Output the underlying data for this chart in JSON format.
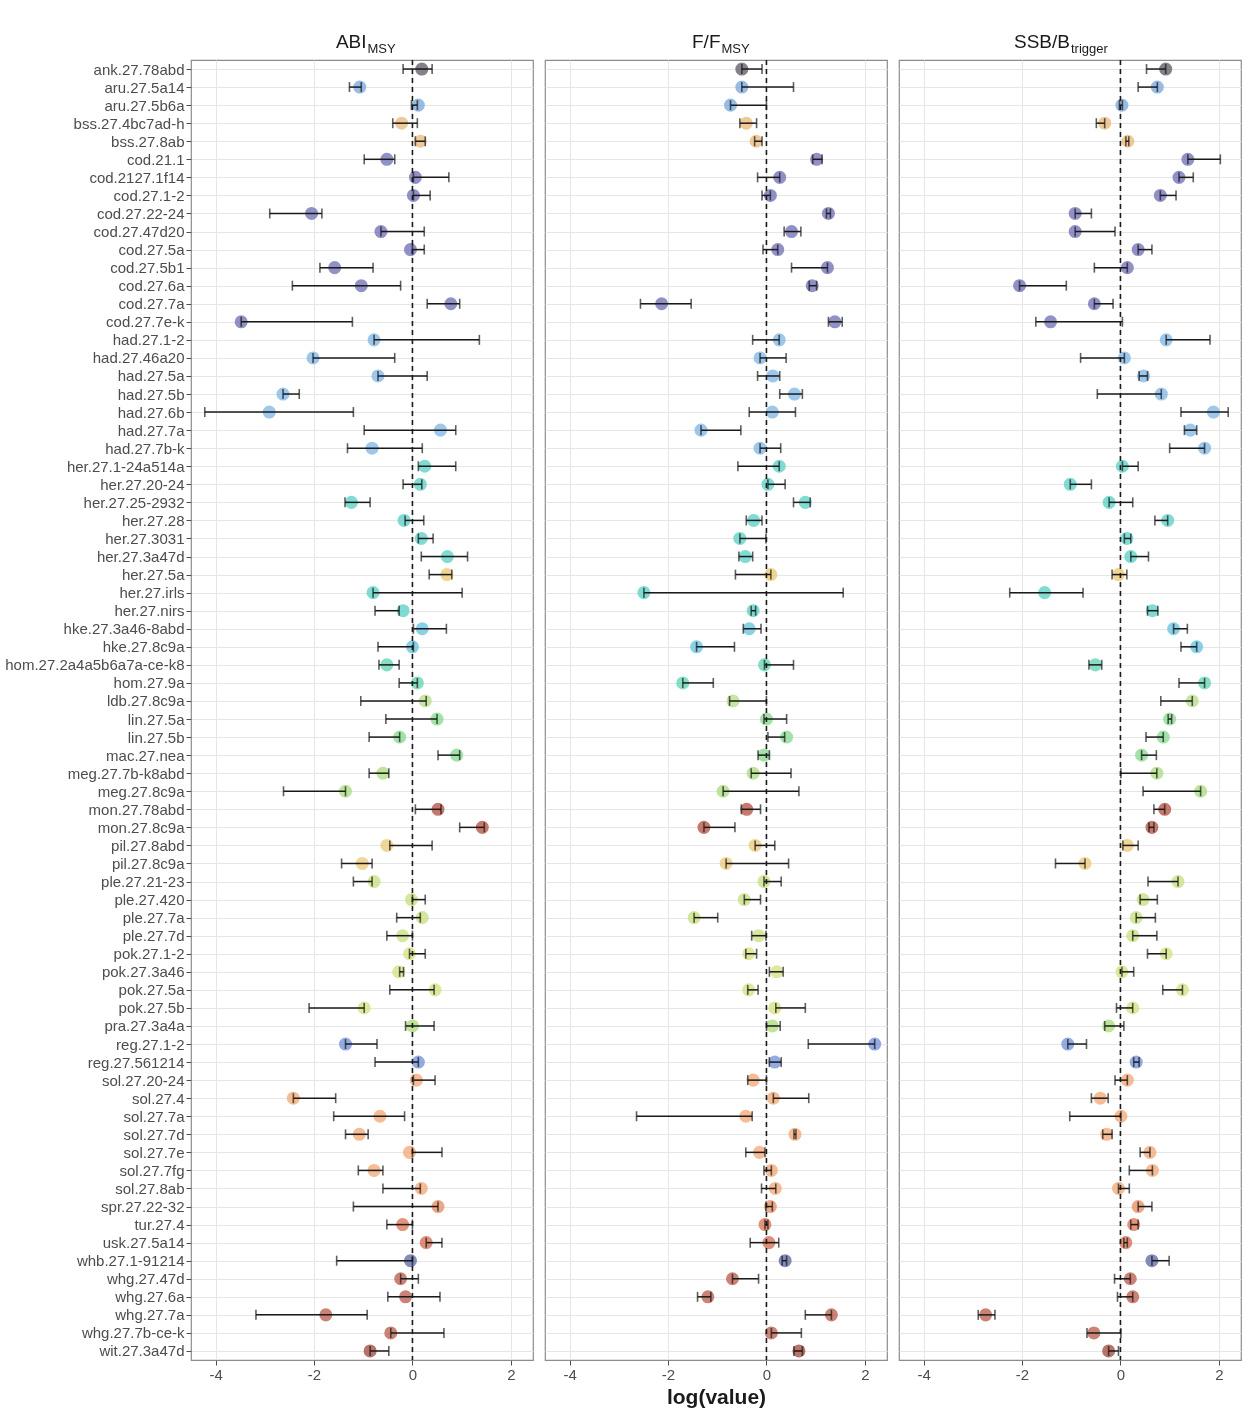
{
  "chart_data": [
    {
      "type": "scatter",
      "title": "ABI$_{MSY}$",
      "orientation": "horizontal",
      "marker": "circle",
      "grid": true,
      "categories": [
        "ank.27.78abd",
        "aru.27.5a14",
        "aru.27.5b6a",
        "bss.27.4bc7ad-h",
        "bss.27.8ab",
        "cod.21.1",
        "cod.2127.1f14",
        "cod.27.1-2",
        "cod.27.22-24",
        "cod.27.47d20",
        "cod.27.5a",
        "cod.27.5b1",
        "cod.27.6a",
        "cod.27.7a",
        "cod.27.7e-k",
        "had.27.1-2",
        "had.27.46a20",
        "had.27.5a",
        "had.27.5b",
        "had.27.6b",
        "had.27.7a",
        "had.27.7b-k",
        "her.27.1-24a514a",
        "her.27.20-24",
        "her.27.25-2932",
        "her.27.28",
        "her.27.3031",
        "her.27.3a47d",
        "her.27.5a",
        "her.27.irls",
        "her.27.nirs",
        "hke.27.3a46-8abd",
        "hke.27.8c9a",
        "hom.27.2a4a5b6a7a-ce-k8",
        "hom.27.9a",
        "ldb.27.8c9a",
        "lin.27.5a",
        "lin.27.5b",
        "mac.27.nea",
        "meg.27.7b-k8abd",
        "meg.27.8c9a",
        "mon.27.78abd",
        "mon.27.8c9a",
        "pil.27.8abd",
        "pil.27.8c9a",
        "ple.27.21-23",
        "ple.27.420",
        "ple.27.7a",
        "ple.27.7d",
        "pok.27.1-2",
        "pok.27.3a46",
        "pok.27.5a",
        "pok.27.5b",
        "pra.27.3a4a",
        "reg.27.1-2",
        "reg.27.561214",
        "sol.27.20-24",
        "sol.27.4",
        "sol.27.7a",
        "sol.27.7d",
        "sol.27.7e",
        "sol.27.7fg",
        "sol.27.8ab",
        "spr.27.22-32",
        "tur.27.4",
        "usk.27.5a14",
        "whb.27.1-91214",
        "whg.27.47d",
        "whg.27.6a",
        "whg.27.7a",
        "whg.27.7b-ce-k",
        "wit.27.3a47d"
      ],
      "colors": [
        "#5e5560",
        "#76a7dc",
        "#76a7dc",
        "#e9b774",
        "#e9b774",
        "#6e6cb4",
        "#6e6cb4",
        "#6e6cb4",
        "#6e6cb4",
        "#6e6cb4",
        "#6e6cb4",
        "#6e6cb4",
        "#6e6cb4",
        "#6e6cb4",
        "#6e6cb4",
        "#7db4e6",
        "#7db4e6",
        "#7db4e6",
        "#7db4e6",
        "#7db4e6",
        "#7db4e6",
        "#7db4e6",
        "#55cfc4",
        "#55cfc4",
        "#55cfc4",
        "#55cfc4",
        "#55cfc4",
        "#55cfc4",
        "#e8c76c",
        "#55cfc4",
        "#55cfc4",
        "#62c2df",
        "#62c2df",
        "#5ed3b0",
        "#5ed3b0",
        "#b5dc84",
        "#84da8e",
        "#84da8e",
        "#84da8e",
        "#a8db7e",
        "#a8db7e",
        "#b64c3e",
        "#b64c3e",
        "#ecc878",
        "#ecc878",
        "#c6df7c",
        "#c6df7c",
        "#c6df7c",
        "#c6df7c",
        "#d4e07c",
        "#d4e07c",
        "#d4e07c",
        "#d4e07c",
        "#a8dc74",
        "#6f8fd8",
        "#6f8fd8",
        "#f2a572",
        "#f2a572",
        "#f2a572",
        "#f2a572",
        "#f2a572",
        "#f2a572",
        "#f2a572",
        "#e68c60",
        "#d9704f",
        "#d2694b",
        "#5b66a6",
        "#b85a48",
        "#b85a48",
        "#b85a48",
        "#b85a48",
        "#a0463a"
      ],
      "values": [
        0.19,
        -1.07,
        0.12,
        -0.22,
        0.16,
        -0.52,
        0.06,
        0.02,
        -2.05,
        -0.64,
        -0.04,
        -1.58,
        -1.04,
        0.78,
        -3.48,
        -0.78,
        -2.02,
        -0.7,
        -2.63,
        -2.91,
        0.57,
        -0.82,
        0.25,
        0.16,
        -1.24,
        -0.17,
        0.18,
        0.71,
        0.7,
        -0.8,
        -0.19,
        0.2,
        0,
        -0.52,
        0.1,
        0.26,
        0.5,
        -0.26,
        0.9,
        -0.6,
        -1.36,
        0.52,
        1.42,
        -0.52,
        -1.02,
        -0.78,
        -0.02,
        0.2,
        -0.2,
        -0.06,
        -0.28,
        0.46,
        -0.98,
        0,
        -1.36,
        0.12,
        0.08,
        -2.42,
        -0.66,
        -1.08,
        -0.06,
        -0.78,
        0.18,
        0.52,
        -0.2,
        0.28,
        -0.04,
        -0.24,
        -0.14,
        -1.76,
        -0.44,
        -0.86
      ],
      "errors": [
        [
          -0.19,
          0.4
        ],
        [
          -1.28,
          -1.04
        ],
        [
          -0.02,
          0.1
        ],
        [
          -0.4,
          0.1
        ],
        [
          0.06,
          0.26
        ],
        [
          -0.98,
          -0.36
        ],
        [
          0.02,
          0.74
        ],
        [
          0.02,
          0.36
        ],
        [
          -2.9,
          -1.84
        ],
        [
          -0.64,
          0.24
        ],
        [
          0,
          0.24
        ],
        [
          -1.88,
          -0.8
        ],
        [
          -2.44,
          -0.24
        ],
        [
          0.3,
          0.96
        ],
        [
          -3.48,
          -1.22
        ],
        [
          -0.78,
          1.36
        ],
        [
          -2.02,
          -0.36
        ],
        [
          -0.7,
          0.3
        ],
        [
          -2.63,
          -2.3
        ],
        [
          -4.22,
          -1.2
        ],
        [
          -0.98,
          0.88
        ],
        [
          -1.32,
          0.2
        ],
        [
          0.12,
          0.88
        ],
        [
          -0.19,
          0.19
        ],
        [
          -1.37,
          -0.86
        ],
        [
          -0.15,
          0.23
        ],
        [
          0.12,
          0.42
        ],
        [
          0.18,
          1.12
        ],
        [
          0.34,
          0.8
        ],
        [
          -0.8,
          1.01
        ],
        [
          -0.76,
          -0.27
        ],
        [
          0.02,
          0.69
        ],
        [
          -0.7,
          0.02
        ],
        [
          -0.68,
          -0.27
        ],
        [
          -0.27,
          0.1
        ],
        [
          -1.05,
          0.28
        ],
        [
          -0.54,
          0.5
        ],
        [
          -0.88,
          -0.26
        ],
        [
          0.52,
          0.96
        ],
        [
          -0.88,
          -0.48
        ],
        [
          -2.62,
          -1.36
        ],
        [
          0.06,
          0.58
        ],
        [
          0.96,
          1.46
        ],
        [
          -0.46,
          0.4
        ],
        [
          -1.44,
          -0.82
        ],
        [
          -1.2,
          -0.82
        ],
        [
          0,
          0.26
        ],
        [
          -0.32,
          0.16
        ],
        [
          -0.52,
          0
        ],
        [
          -0.06,
          0.26
        ],
        [
          -0.26,
          -0.18
        ],
        [
          -0.46,
          0.44
        ],
        [
          -2.1,
          -0.98
        ],
        [
          -0.14,
          0.44
        ],
        [
          -1.36,
          -0.72
        ],
        [
          -0.76,
          0.12
        ],
        [
          0.02,
          0.46
        ],
        [
          -2.42,
          -1.56
        ],
        [
          -1.6,
          -0.16
        ],
        [
          -1.36,
          -0.9
        ],
        [
          0,
          0.6
        ],
        [
          -1.1,
          -0.6
        ],
        [
          -0.6,
          0.16
        ],
        [
          -1.2,
          0.52
        ],
        [
          -0.52,
          0
        ],
        [
          0.28,
          0.6
        ],
        [
          -1.54,
          0
        ],
        [
          -0.24,
          0.12
        ],
        [
          -0.5,
          0.56
        ],
        [
          -3.18,
          -0.92
        ],
        [
          -0.44,
          0.64
        ],
        [
          -0.86,
          -0.48
        ]
      ],
      "xlim": [
        -4.5,
        2.45
      ],
      "xticks": [
        -4,
        -2,
        0,
        2
      ],
      "ref_lines": [
        {
          "axis": "x",
          "value": 0,
          "line_style": "dashed"
        }
      ]
    },
    {
      "type": "scatter",
      "title": "F/F$_{MSY}$",
      "xlabel": "log(value)",
      "orientation": "horizontal",
      "marker": "circle",
      "grid": true,
      "tick_labels": "x",
      "colors": [
        "#5e5560",
        "#76a7dc",
        "#76a7dc",
        "#e9b774",
        "#e9b774",
        "#6e6cb4",
        "#6e6cb4",
        "#6e6cb4",
        "#6e6cb4",
        "#6e6cb4",
        "#6e6cb4",
        "#6e6cb4",
        "#6e6cb4",
        "#6e6cb4",
        "#6e6cb4",
        "#7db4e6",
        "#7db4e6",
        "#7db4e6",
        "#7db4e6",
        "#7db4e6",
        "#7db4e6",
        "#7db4e6",
        "#55cfc4",
        "#55cfc4",
        "#55cfc4",
        "#55cfc4",
        "#55cfc4",
        "#55cfc4",
        "#e8c76c",
        "#55cfc4",
        "#55cfc4",
        "#62c2df",
        "#62c2df",
        "#5ed3b0",
        "#5ed3b0",
        "#b5dc84",
        "#84da8e",
        "#84da8e",
        "#84da8e",
        "#a8db7e",
        "#a8db7e",
        "#b64c3e",
        "#b64c3e",
        "#ecc878",
        "#ecc878",
        "#c6df7c",
        "#c6df7c",
        "#c6df7c",
        "#c6df7c",
        "#d4e07c",
        "#d4e07c",
        "#d4e07c",
        "#d4e07c",
        "#a8dc74",
        "#6f8fd8",
        "#6f8fd8",
        "#f2a572",
        "#f2a572",
        "#f2a572",
        "#f2a572",
        "#f2a572",
        "#f2a572",
        "#f2a572",
        "#e68c60",
        "#d9704f",
        "#d2694b",
        "#5b66a6",
        "#b85a48",
        "#b85a48",
        "#b85a48",
        "#b85a48",
        "#a0463a"
      ],
      "values": [
        -0.5,
        -0.5,
        -0.73,
        -0.41,
        -0.21,
        1.02,
        0.27,
        0.08,
        1.26,
        0.51,
        0.23,
        1.24,
        0.93,
        -2.13,
        1.39,
        0.26,
        -0.13,
        0.13,
        0.57,
        0.12,
        -1.33,
        -0.13,
        0.26,
        0.03,
        0.79,
        -0.26,
        -0.54,
        -0.43,
        0.09,
        -2.49,
        -0.27,
        -0.35,
        -1.42,
        -0.04,
        -1.7,
        -0.68,
        0,
        0.41,
        -0.05,
        -0.27,
        -0.88,
        -0.4,
        -1.27,
        -0.23,
        -0.82,
        -0.05,
        -0.45,
        -1.47,
        -0.16,
        -0.36,
        0.21,
        -0.36,
        0.17,
        0.12,
        2.2,
        0.17,
        -0.27,
        0.14,
        -0.42,
        0.58,
        -0.14,
        0.1,
        0.18,
        0.08,
        -0.03,
        0.05,
        0.38,
        -0.69,
        -1.19,
        1.32,
        0.1,
        0.66
      ],
      "errors": [
        [
          -0.5,
          -0.09
        ],
        [
          -0.5,
          0.55
        ],
        [
          -0.73,
          0
        ],
        [
          -0.54,
          -0.2
        ],
        [
          -0.24,
          -0.09
        ],
        [
          0.94,
          1.13
        ],
        [
          -0.18,
          0.27
        ],
        [
          -0.09,
          0.08
        ],
        [
          1.22,
          1.3
        ],
        [
          0.36,
          0.7
        ],
        [
          -0.07,
          0.23
        ],
        [
          0.51,
          1.24
        ],
        [
          0.87,
          1.02
        ],
        [
          -2.56,
          -1.53
        ],
        [
          1.26,
          1.54
        ],
        [
          -0.28,
          0.26
        ],
        [
          -0.13,
          0.4
        ],
        [
          -0.18,
          0.27
        ],
        [
          0.27,
          0.73
        ],
        [
          -0.35,
          0.59
        ],
        [
          -1.33,
          -0.52
        ],
        [
          -0.13,
          0.29
        ],
        [
          -0.58,
          0.26
        ],
        [
          0.03,
          0.38
        ],
        [
          0.55,
          0.89
        ],
        [
          -0.41,
          -0.09
        ],
        [
          -0.54,
          -0.01
        ],
        [
          -0.56,
          -0.28
        ],
        [
          -0.63,
          0.09
        ],
        [
          -2.49,
          1.56
        ],
        [
          -0.31,
          -0.22
        ],
        [
          -0.47,
          -0.11
        ],
        [
          -1.42,
          -0.65
        ],
        [
          -0.04,
          0.55
        ],
        [
          -1.7,
          -1.08
        ],
        [
          -0.75,
          0
        ],
        [
          -0.05,
          0.41
        ],
        [
          0.03,
          0.37
        ],
        [
          -0.17,
          0.06
        ],
        [
          -0.31,
          0.5
        ],
        [
          -0.88,
          0.66
        ],
        [
          -0.51,
          -0.12
        ],
        [
          -1.27,
          -0.64
        ],
        [
          -0.23,
          0.17
        ],
        [
          -0.82,
          0.45
        ],
        [
          -0.05,
          0.3
        ],
        [
          -0.45,
          -0.12
        ],
        [
          -1.47,
          -0.99
        ],
        [
          -0.3,
          -0.01
        ],
        [
          -0.42,
          -0.2
        ],
        [
          0.06,
          0.34
        ],
        [
          -0.38,
          -0.17
        ],
        [
          0.19,
          0.79
        ],
        [
          0,
          0.28
        ],
        [
          0.85,
          2.2
        ],
        [
          0.06,
          0.3
        ],
        [
          -0.38,
          0
        ],
        [
          0.14,
          0.86
        ],
        [
          -2.64,
          -0.29
        ],
        [
          0.56,
          0.6
        ],
        [
          -0.42,
          -0.03
        ],
        [
          -0.05,
          0.1
        ],
        [
          -0.1,
          0.19
        ],
        [
          -0.01,
          0.12
        ],
        [
          -0.03,
          0.03
        ],
        [
          -0.33,
          0.25
        ],
        [
          0.32,
          0.41
        ],
        [
          -0.69,
          -0.16
        ],
        [
          -1.4,
          -1.13
        ],
        [
          0.79,
          1.32
        ],
        [
          0.1,
          0.71
        ],
        [
          0.56,
          0.73
        ]
      ],
      "xlim": [
        -4.5,
        2.45
      ],
      "xticks": [
        -4,
        -2,
        0,
        2
      ],
      "ref_lines": [
        {
          "axis": "x",
          "value": 0,
          "line_style": "dashed"
        }
      ]
    },
    {
      "type": "scatter",
      "title": "SSB/B$_{trigger}$",
      "orientation": "horizontal",
      "marker": "circle",
      "grid": true,
      "tick_labels": "x",
      "colors": [
        "#5e5560",
        "#76a7dc",
        "#76a7dc",
        "#e9b774",
        "#e9b774",
        "#6e6cb4",
        "#6e6cb4",
        "#6e6cb4",
        "#6e6cb4",
        "#6e6cb4",
        "#6e6cb4",
        "#6e6cb4",
        "#6e6cb4",
        "#6e6cb4",
        "#6e6cb4",
        "#7db4e6",
        "#7db4e6",
        "#7db4e6",
        "#7db4e6",
        "#7db4e6",
        "#7db4e6",
        "#7db4e6",
        "#55cfc4",
        "#55cfc4",
        "#55cfc4",
        "#55cfc4",
        "#55cfc4",
        "#55cfc4",
        "#e8c76c",
        "#55cfc4",
        "#55cfc4",
        "#62c2df",
        "#62c2df",
        "#5ed3b0",
        "#5ed3b0",
        "#b5dc84",
        "#84da8e",
        "#84da8e",
        "#84da8e",
        "#a8db7e",
        "#a8db7e",
        "#b64c3e",
        "#b64c3e",
        "#ecc878",
        "#ecc878",
        "#c6df7c",
        "#c6df7c",
        "#c6df7c",
        "#c6df7c",
        "#d4e07c",
        "#d4e07c",
        "#d4e07c",
        "#d4e07c",
        "#a8dc74",
        "#6f8fd8",
        "#6f8fd8",
        "#f2a572",
        "#f2a572",
        "#f2a572",
        "#f2a572",
        "#f2a572",
        "#f2a572",
        "#f2a572",
        "#e68c60",
        "#d9704f",
        "#d2694b",
        "#5b66a6",
        "#b85a48",
        "#b85a48",
        "#b85a48",
        "#b85a48",
        "#a0463a"
      ],
      "values": [
        0.92,
        0.75,
        0.03,
        -0.32,
        0.15,
        1.37,
        1.19,
        0.81,
        -0.92,
        -0.92,
        0.36,
        0.14,
        -2.05,
        -0.53,
        -1.42,
        0.93,
        0.08,
        0.47,
        0.83,
        1.89,
        1.42,
        1.71,
        0.04,
        -1.02,
        -0.23,
        0.96,
        0.13,
        0.21,
        -0.04,
        -1.54,
        0.65,
        1.08,
        1.55,
        -0.51,
        1.71,
        1.46,
        1,
        0.87,
        0.43,
        0.74,
        1.63,
        0.9,
        0.64,
        0.14,
        -0.72,
        1.17,
        0.46,
        0.32,
        0.25,
        0.93,
        0.03,
        1.26,
        0.25,
        -0.24,
        -1.07,
        0.32,
        0.14,
        -0.41,
        0.01,
        -0.28,
        0.6,
        0.65,
        -0.04,
        0.36,
        0.27,
        0.11,
        0.64,
        0.2,
        0.25,
        -2.74,
        -0.54,
        -0.24
      ],
      "errors": [
        [
          0.53,
          0.92
        ],
        [
          0.36,
          0.75
        ],
        [
          -0.02,
          0.04
        ],
        [
          -0.49,
          -0.32
        ],
        [
          0.11,
          0.17
        ],
        [
          1.37,
          2.03
        ],
        [
          1.19,
          1.48
        ],
        [
          0.81,
          1.13
        ],
        [
          -0.92,
          -0.59
        ],
        [
          -0.92,
          -0.11
        ],
        [
          0.36,
          0.64
        ],
        [
          -0.53,
          0.14
        ],
        [
          -2.05,
          -1.1
        ],
        [
          -0.53,
          -0.15
        ],
        [
          -1.72,
          0.04
        ],
        [
          0.93,
          1.82
        ],
        [
          -0.81,
          0.08
        ],
        [
          0.38,
          0.55
        ],
        [
          -0.47,
          0.83
        ],
        [
          1.23,
          2.19
        ],
        [
          1.3,
          1.55
        ],
        [
          1,
          1.71
        ],
        [
          0.04,
          0.36
        ],
        [
          -1.02,
          -0.59
        ],
        [
          -0.23,
          0.25
        ],
        [
          0.7,
          0.96
        ],
        [
          0.08,
          0.21
        ],
        [
          0.21,
          0.57
        ],
        [
          -0.17,
          0.13
        ],
        [
          -2.25,
          -0.76
        ],
        [
          0.55,
          0.76
        ],
        [
          1.08,
          1.36
        ],
        [
          1.23,
          1.55
        ],
        [
          -0.64,
          -0.38
        ],
        [
          1.19,
          1.71
        ],
        [
          0.82,
          1.46
        ],
        [
          0.97,
          1.04
        ],
        [
          0.52,
          0.87
        ],
        [
          0.43,
          0.73
        ],
        [
          0.01,
          0.74
        ],
        [
          0.46,
          1.63
        ],
        [
          0.68,
          0.9
        ],
        [
          0.58,
          0.68
        ],
        [
          0.05,
          0.36
        ],
        [
          -1.32,
          -0.72
        ],
        [
          0.56,
          1.17
        ],
        [
          0.4,
          0.75
        ],
        [
          0.32,
          0.71
        ],
        [
          0.25,
          0.74
        ],
        [
          0.55,
          0.93
        ],
        [
          0.03,
          0.27
        ],
        [
          0.86,
          1.26
        ],
        [
          -0.08,
          0.25
        ],
        [
          -0.32,
          0.07
        ],
        [
          -1.07,
          -0.69
        ],
        [
          0.27,
          0.38
        ],
        [
          -0.11,
          0.14
        ],
        [
          -0.59,
          -0.25
        ],
        [
          -1.03,
          0.01
        ],
        [
          -0.36,
          -0.17
        ],
        [
          0.4,
          0.6
        ],
        [
          0.18,
          0.65
        ],
        [
          -0.04,
          0.18
        ],
        [
          0.36,
          0.64
        ],
        [
          0.21,
          0.36
        ],
        [
          0.07,
          0.14
        ],
        [
          0.64,
          0.99
        ],
        [
          -0.12,
          0.2
        ],
        [
          -0.06,
          0.25
        ],
        [
          -2.89,
          -2.55
        ],
        [
          -0.68,
          0.01
        ],
        [
          -0.24,
          -0.04
        ]
      ],
      "xlim": [
        -4.5,
        2.45
      ],
      "xticks": [
        -4,
        -2,
        0,
        2
      ],
      "ref_lines": [
        {
          "axis": "x",
          "value": 0,
          "line_style": "dashed"
        }
      ]
    }
  ]
}
